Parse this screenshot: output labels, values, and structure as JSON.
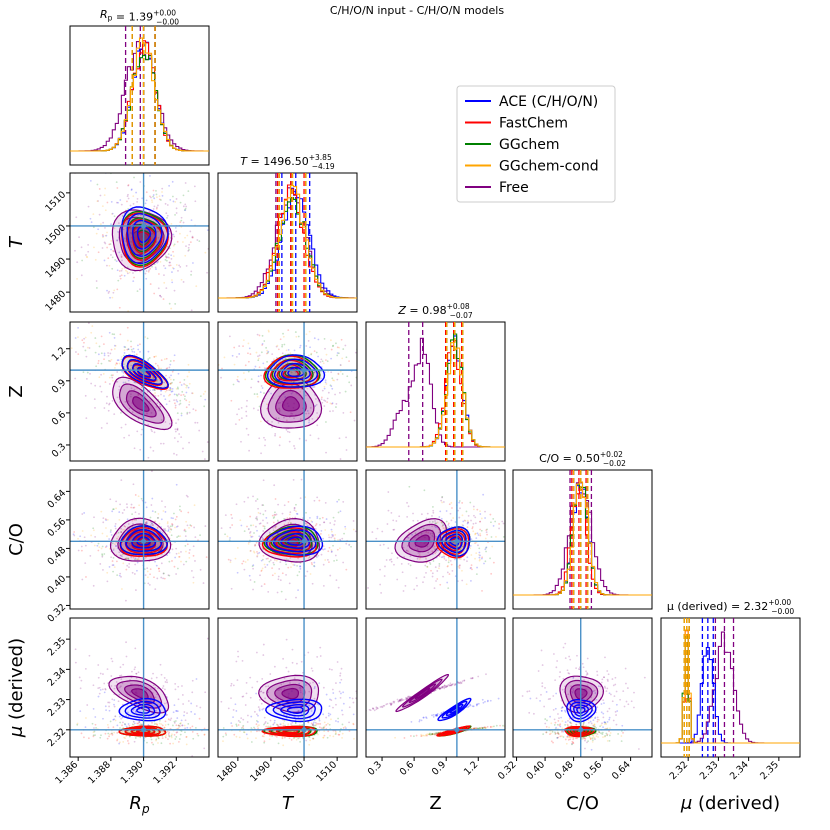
{
  "figure_title": "C/H/O/N input - C/H/O/N models",
  "colors": {
    "ACE (C/H/O/N)": "#0000ff",
    "FastChem": "#ff0000",
    "GGchem": "#008000",
    "GGchem-cond": "#ffa500",
    "Free": "#800080",
    "truth_line": "#4a90c8"
  },
  "chart_data": {
    "type": "scatter",
    "subtype": "corner plot",
    "parameters": [
      "R_p",
      "T",
      "Z",
      "C/O",
      "mu (derived)"
    ],
    "axis_labels": [
      "R_p",
      "T",
      "Z",
      "C/O",
      "μ (derived)"
    ],
    "truth": {
      "R_p": 1.39,
      "T": 1500,
      "Z": 1.0,
      "C/O": 0.5,
      "mu": 2.32
    },
    "ranges": {
      "R_p": [
        1.3855,
        1.394
      ],
      "T": [
        1474,
        1516
      ],
      "Z": [
        0.15,
        1.45
      ],
      "C/O": [
        0.31,
        0.7
      ],
      "mu": [
        2.311,
        2.357
      ]
    },
    "ticks": {
      "R_p": [
        "1.386",
        "1.388",
        "1.390",
        "1.392"
      ],
      "T": [
        "1480",
        "1490",
        "1500",
        "1510"
      ],
      "Z": [
        "0.3",
        "0.6",
        "0.9",
        "1.2"
      ],
      "C/O": [
        "0.32",
        "0.40",
        "0.48",
        "0.56",
        "0.64"
      ],
      "mu": [
        "2.32",
        "2.33",
        "2.34",
        "2.35"
      ]
    },
    "diagonal_titles": [
      {
        "param": "R_p",
        "lhs": "R",
        "sub": "p",
        "value": "1.39",
        "plus": "+0.00",
        "minus": "−0.00"
      },
      {
        "param": "T",
        "lhs": "T",
        "sub": "",
        "value": "1496.50",
        "plus": "+3.85",
        "minus": "−4.19"
      },
      {
        "param": "Z",
        "lhs": "Z",
        "sub": "",
        "value": "0.98",
        "plus": "+0.08",
        "minus": "−0.07"
      },
      {
        "param": "C/O",
        "lhs": "C/O",
        "sub": "",
        "value": "0.50",
        "plus": "+0.02",
        "minus": "−0.02"
      },
      {
        "param": "mu",
        "lhs": "μ (derived)",
        "sub": "",
        "value": "2.32",
        "plus": "+0.00",
        "minus": "−0.00"
      }
    ],
    "series": [
      {
        "name": "ACE (C/H/O/N)",
        "posterior": {
          "R_p": [
            1.39,
            0.0007
          ],
          "T": [
            1497.5,
            4.2
          ],
          "Z": [
            0.98,
            0.075
          ],
          "C/O": [
            0.5,
            0.02
          ],
          "mu": [
            2.3265,
            0.0018
          ]
        }
      },
      {
        "name": "FastChem",
        "posterior": {
          "R_p": [
            1.39,
            0.0007
          ],
          "T": [
            1496.0,
            4.0
          ],
          "Z": [
            0.97,
            0.075
          ],
          "C/O": [
            0.495,
            0.02
          ],
          "mu": [
            2.3195,
            0.0008
          ]
        }
      },
      {
        "name": "GGchem",
        "posterior": {
          "R_p": [
            1.39,
            0.0007
          ],
          "T": [
            1496.5,
            4.0
          ],
          "Z": [
            0.98,
            0.075
          ],
          "C/O": [
            0.5,
            0.02
          ],
          "mu": [
            2.3195,
            0.0008
          ]
        }
      },
      {
        "name": "GGchem-cond",
        "posterior": {
          "R_p": [
            1.39,
            0.0007
          ],
          "T": [
            1496.5,
            4.0
          ],
          "Z": [
            0.98,
            0.075
          ],
          "C/O": [
            0.5,
            0.02
          ],
          "mu": [
            2.3195,
            0.0008
          ]
        }
      },
      {
        "name": "Free",
        "posterior": {
          "R_p": [
            1.3898,
            0.0009
          ],
          "T": [
            1496.0,
            4.5
          ],
          "Z": [
            0.68,
            0.12
          ],
          "C/O": [
            0.5,
            0.03
          ],
          "mu": [
            2.332,
            0.003
          ]
        }
      }
    ],
    "legend": {
      "placement": "upper-right",
      "entries": [
        "ACE (C/H/O/N)",
        "FastChem",
        "GGchem",
        "GGchem-cond",
        "Free"
      ]
    }
  }
}
